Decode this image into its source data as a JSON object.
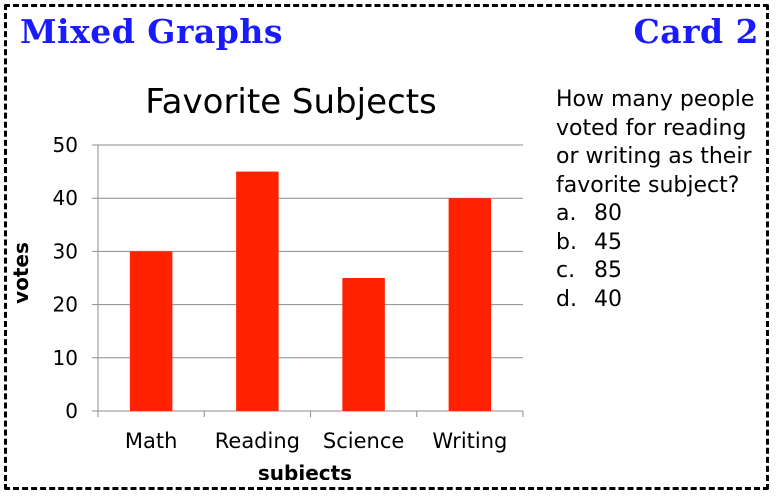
{
  "header": {
    "left_title": "Mixed Graphs",
    "right_title": "Card 2",
    "color": "#1a1aff"
  },
  "question": {
    "text": "How many people voted for reading or writing as their favorite subject?",
    "options": [
      {
        "letter": "a.",
        "value": "80"
      },
      {
        "letter": "b.",
        "value": "45"
      },
      {
        "letter": "c.",
        "value": "85"
      },
      {
        "letter": "d.",
        "value": "40"
      }
    ]
  },
  "chart_data": {
    "type": "bar",
    "title": "Favorite Subjects",
    "xlabel": "subjects",
    "ylabel": "votes",
    "categories": [
      "Math",
      "Reading",
      "Science",
      "Writing"
    ],
    "values": [
      30,
      45,
      25,
      40
    ],
    "ylim": [
      0,
      50
    ],
    "yticks": [
      0,
      10,
      20,
      30,
      40,
      50
    ],
    "grid": true,
    "bar_color": "#ff2200"
  }
}
